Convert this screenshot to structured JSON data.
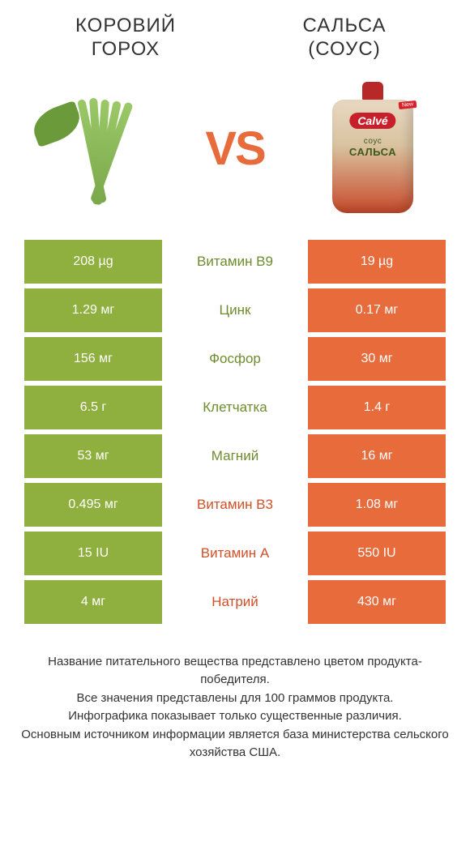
{
  "colors": {
    "green": "#8fb03e",
    "orange": "#e86b3c",
    "nutrient_green": "#6d8c2e",
    "nutrient_orange": "#d05028",
    "background": "#ffffff",
    "text": "#333333"
  },
  "products": {
    "left": {
      "title_line1": "КОРОВИЙ",
      "title_line2": "ГОРОХ"
    },
    "right": {
      "title_line1": "САЛЬСА",
      "title_line2": "(СОУС)"
    }
  },
  "pouch": {
    "brand": "Calvé",
    "label_top": "соус",
    "label_main": "САЛЬСА",
    "badge": "New"
  },
  "vs_label": "VS",
  "rows": [
    {
      "left": "208 µg",
      "name": "Витамин B9",
      "right": "19 µg",
      "winner": "left"
    },
    {
      "left": "1.29 мг",
      "name": "Цинк",
      "right": "0.17 мг",
      "winner": "left"
    },
    {
      "left": "156 мг",
      "name": "Фосфор",
      "right": "30 мг",
      "winner": "left"
    },
    {
      "left": "6.5 г",
      "name": "Клетчатка",
      "right": "1.4 г",
      "winner": "left"
    },
    {
      "left": "53 мг",
      "name": "Магний",
      "right": "16 мг",
      "winner": "left"
    },
    {
      "left": "0.495 мг",
      "name": "Витамин B3",
      "right": "1.08 мг",
      "winner": "right"
    },
    {
      "left": "15 IU",
      "name": "Витамин A",
      "right": "550 IU",
      "winner": "right"
    },
    {
      "left": "4 мг",
      "name": "Натрий",
      "right": "430 мг",
      "winner": "right"
    }
  ],
  "footnote": "Название питательного вещества представлено цветом продукта-победителя.\nВсе значения представлены для 100 граммов продукта.\nИнфографика показывает только существенные различия.\nОсновным источником информации является база министерства сельского хозяйства США."
}
